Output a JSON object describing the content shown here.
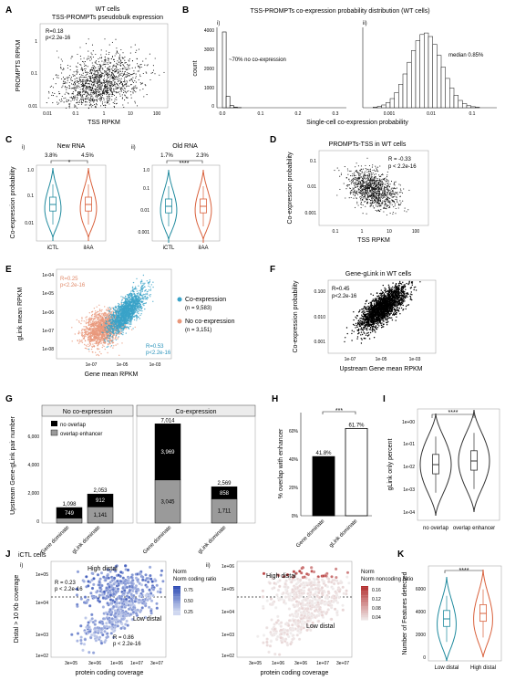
{
  "figure": {
    "panels": {
      "A": {
        "label": "A",
        "title_line1": "WT cells",
        "title_line2": "TSS-PROMPTs pseudobulk expression",
        "stat_r": "R=0.18",
        "stat_p": "p<2.2e-16"
      },
      "B": {
        "label": "B",
        "title": "TSS-PROMPTs co-expression probability distribution (WT cells)",
        "sub_i": "i)",
        "sub_ii": "ii)",
        "note_i": "~70% no co-expression",
        "note_ii": "median 0.85%",
        "shared_xlabel": "Single-cell co-expression probability"
      },
      "C": {
        "label": "C",
        "sub_i": "i)",
        "sub_ii": "ii)",
        "title_i": "New RNA",
        "title_ii": "Old RNA",
        "pct_i_a": "3.8%",
        "pct_i_b": "4.5%",
        "pct_ii_a": "1.7%",
        "pct_ii_b": "2.3%",
        "sig_i": "*",
        "sig_ii": "****"
      },
      "D": {
        "label": "D",
        "title": "PROMPTs-TSS in WT cells",
        "stat_r": "R = -0.33",
        "stat_p": "p < 2.2e-16"
      },
      "E": {
        "label": "E",
        "stat_r_a": "R=0.25",
        "stat_p_a": "p<2.2e-16",
        "stat_r_b": "R=0.53",
        "stat_p_b": "p<2.2e-16",
        "legend": [
          {
            "name": "Co-expression",
            "n": "(n = 9,583)"
          },
          {
            "name": "No co-expression",
            "n": "(n = 3,151)"
          }
        ]
      },
      "F": {
        "label": "F",
        "title": "Gene-gLink in WT cells",
        "stat_r": "R=0.45",
        "stat_p": "p<2.2e-16"
      },
      "G": {
        "label": "G",
        "facet_a": "No co-expression",
        "facet_b": "Co-expression",
        "legend": [
          "no overlap",
          "overlap enhancer"
        ]
      },
      "H": {
        "label": "H",
        "sig": "***"
      },
      "I": {
        "label": "I",
        "sig": "****"
      },
      "J": {
        "label": "J",
        "group": "iCTL cells",
        "sub_i": "i)",
        "sub_ii": "ii)",
        "high_i": "High distal",
        "low_i": "Low distal",
        "stat_r_a": "R = 0.23",
        "stat_p_a": "p < 2.2e-16",
        "stat_r_b": "R = 0.86",
        "stat_p_b": "p < 2.2e-16",
        "legend_i_title": "Norm coding ratio",
        "legend_ii_title": "Norm noncoding ratio",
        "high_ii": "High distal",
        "low_ii": "Low distal"
      },
      "K": {
        "label": "K",
        "sig": "****"
      }
    }
  },
  "chart_data": [
    {
      "id": "A",
      "type": "scatter",
      "xlabel": "TSS RPKM",
      "ylabel": "PROMPTS RPKM",
      "x_ticks": [
        "0.01",
        "0.1",
        "1",
        "10",
        "100"
      ],
      "y_ticks": [
        "0.01",
        "0.1",
        "1"
      ],
      "x_scale": "log",
      "y_scale": "log",
      "xlim": [
        0.004,
        500
      ],
      "ylim": [
        0.009,
        3
      ]
    },
    {
      "id": "B-i",
      "type": "bar",
      "xlabel": "",
      "ylabel": "count",
      "x_ticks": [
        "0.0",
        "0.1",
        "0.2",
        "0.3"
      ],
      "y_ticks": [
        "0",
        "1000",
        "2000",
        "3000",
        "4000"
      ],
      "xlim": [
        0,
        0.35
      ],
      "ylim": [
        0,
        4200
      ],
      "bins": [
        0.0,
        0.01,
        0.02,
        0.03,
        0.04
      ],
      "counts": [
        4000,
        600,
        120,
        30,
        10
      ]
    },
    {
      "id": "B-ii",
      "type": "bar",
      "x_scale": "log",
      "x_ticks": [
        "0.001",
        "0.01",
        "0.1"
      ],
      "xlim": [
        0.0003,
        0.3
      ],
      "median": 0.0085
    },
    {
      "id": "C-i",
      "type": "violin",
      "ylabel": "Co-expression probability",
      "categories": [
        "iCTL",
        "iIAA"
      ],
      "y_ticks": [
        "0.01",
        "0.1",
        "1.0"
      ],
      "colors": [
        "#1f8a9e",
        "#d9603b"
      ]
    },
    {
      "id": "C-ii",
      "type": "violin",
      "categories": [
        "iCTL",
        "iIAA"
      ],
      "y_ticks": [
        "0.001",
        "0.01",
        "0.1",
        "1.0"
      ],
      "colors": [
        "#1f8a9e",
        "#d9603b"
      ]
    },
    {
      "id": "D",
      "type": "scatter",
      "xlabel": "TSS RPKM",
      "ylabel": "Co-expression probability",
      "x_ticks": [
        "0.1",
        "1",
        "10",
        "100"
      ],
      "y_ticks": [
        "0.001",
        "0.01",
        "0.1"
      ]
    },
    {
      "id": "E",
      "type": "scatter",
      "xlabel": "Gene mean RPKM",
      "ylabel": "gLink mean RPKM",
      "x_ticks": [
        "1e-07",
        "1e-05",
        "1e-03"
      ],
      "y_ticks": [
        "1e-08",
        "1e-07",
        "1e-06",
        "1e-05",
        "1e-04"
      ],
      "colors": {
        "co": "#3aa3c8",
        "no": "#e9977a"
      }
    },
    {
      "id": "F",
      "type": "scatter",
      "xlabel": "Upstream Gene mean RPKM",
      "ylabel": "Co-expression probability",
      "x_ticks": [
        "1e-07",
        "1e-05",
        "1e-03"
      ],
      "y_ticks": [
        "0.001",
        "0.010",
        "0.100"
      ]
    },
    {
      "id": "G",
      "type": "bar",
      "ylabel": "Upstream Gene-gLink pair number",
      "y_ticks": [
        "0",
        "2,000",
        "4,000",
        "6,000"
      ],
      "ylim": [
        0,
        7600
      ],
      "facets": [
        {
          "name": "No co-expression",
          "categories": [
            "Gene dominate",
            "gLink dominate"
          ],
          "totals": [
            "1,098",
            "2,053"
          ],
          "series": [
            {
              "name": "no overlap",
              "values": [
                749,
                912
              ],
              "labels": [
                "749",
                "912"
              ]
            },
            {
              "name": "overlap enhancer",
              "values": [
                349,
                1141
              ],
              "labels": [
                "",
                "1,141"
              ]
            }
          ]
        },
        {
          "name": "Co-expression",
          "categories": [
            "Gene dominate",
            "gLink dominate"
          ],
          "totals": [
            "7,014",
            "2,569"
          ],
          "series": [
            {
              "name": "no overlap",
              "values": [
                3969,
                858
              ],
              "labels": [
                "3,969",
                "858"
              ]
            },
            {
              "name": "overlap enhancer",
              "values": [
                3045,
                1711
              ],
              "labels": [
                "3,045",
                "1,711"
              ]
            }
          ]
        }
      ]
    },
    {
      "id": "H",
      "type": "bar",
      "ylabel": "% overlap with enhancer",
      "categories": [
        "Gene dominate",
        "gLink dominate"
      ],
      "values": [
        41.8,
        61.7
      ],
      "labels": [
        "41.8%",
        "61.7%"
      ],
      "y_ticks": [
        "0%",
        "20%",
        "40%",
        "60%"
      ],
      "ylim": [
        0,
        72
      ]
    },
    {
      "id": "I",
      "type": "violin",
      "ylabel": "gLink only percent",
      "categories": [
        "no overlap",
        "overlap enhancer"
      ],
      "y_ticks": [
        "1e-04",
        "1e-03",
        "1e-02",
        "1e-01",
        "1e+00"
      ]
    },
    {
      "id": "J-i",
      "type": "scatter",
      "xlabel": "protein coding coverage",
      "ylabel": "Distal > 10 Kb coverage",
      "x_ticks": [
        "3e+05",
        "3e+06",
        "1e+06",
        "1e+07",
        "3e+07"
      ],
      "y_ticks": [
        "1e+02",
        "1e+03",
        "1e+04",
        "1e+05"
      ],
      "legend_ticks": [
        "0.75",
        "0.50",
        "0.25"
      ]
    },
    {
      "id": "J-ii",
      "type": "scatter",
      "xlabel": "protein coding coverage",
      "x_ticks": [
        "3e+05",
        "1e+06",
        "3e+06",
        "1e+07",
        "3e+07"
      ],
      "y_ticks": [
        "1e+02",
        "1e+03",
        "1e+04",
        "1e+05",
        "1e+06"
      ],
      "legend_ticks": [
        "0.16",
        "0.12",
        "0.08",
        "0.04"
      ]
    },
    {
      "id": "K",
      "type": "violin",
      "ylabel": "Number of Features detected",
      "categories": [
        "Low distal",
        "High distal"
      ],
      "y_ticks": [
        "0",
        "2000",
        "4000",
        "6000"
      ],
      "colors": [
        "#1f8a9e",
        "#d9603b"
      ]
    }
  ]
}
